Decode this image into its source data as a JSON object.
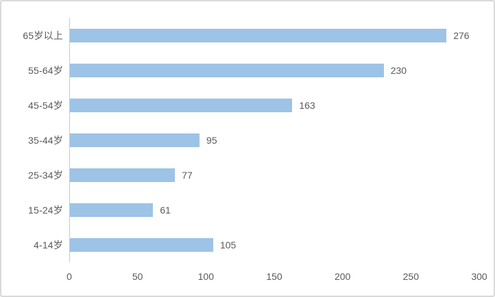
{
  "window": {
    "background_color": "#ffffff",
    "border_color": "#d9d9d9"
  },
  "chart_data": {
    "type": "bar",
    "orientation": "horizontal",
    "title": "",
    "xlabel": "",
    "ylabel": "",
    "categories": [
      "65岁以上",
      "55-64岁",
      "45-54岁",
      "35-44岁",
      "25-34岁",
      "15-24岁",
      "4-14岁"
    ],
    "values": [
      276,
      230,
      163,
      95,
      77,
      61,
      105
    ],
    "data_labels": [
      "276",
      "230",
      "163",
      "95",
      "77",
      "61",
      "105"
    ],
    "xlim": [
      0,
      300
    ],
    "xticks": [
      "0",
      "50",
      "100",
      "150",
      "200",
      "250",
      "300"
    ],
    "grid": "off",
    "legend": "none",
    "bar_color": "#9dc3e6",
    "text_color": "#595959",
    "axis_line_color": "#c9c9c9"
  }
}
